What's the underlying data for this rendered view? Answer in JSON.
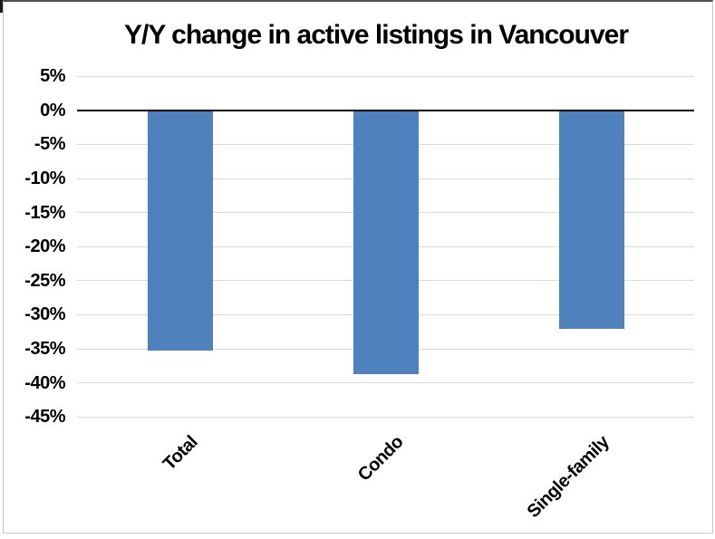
{
  "chart": {
    "bar_color": "#4F81BD",
    "gridline_color": "#D9D9D9",
    "axis_line_color": "#000000",
    "text_color": "#000000",
    "background_color": "#FFFFFF"
  },
  "chart_data": {
    "type": "bar",
    "title": "Y/Y change in active listings in Vancouver",
    "categories": [
      "Total",
      "Condo",
      "Single-family"
    ],
    "values": [
      -35.3,
      -38.7,
      -32.1
    ],
    "unit": "%",
    "xlabel": "",
    "ylabel": "",
    "ylim": [
      -45,
      5
    ],
    "ytick_step": 5,
    "ytick_labels": [
      "5%",
      "0%",
      "-5%",
      "-10%",
      "-15%",
      "-20%",
      "-25%",
      "-30%",
      "-35%",
      "-40%",
      "-45%"
    ],
    "grid": true,
    "legend": null,
    "orientation": "vertical",
    "category_label_rotation_deg": 45
  }
}
